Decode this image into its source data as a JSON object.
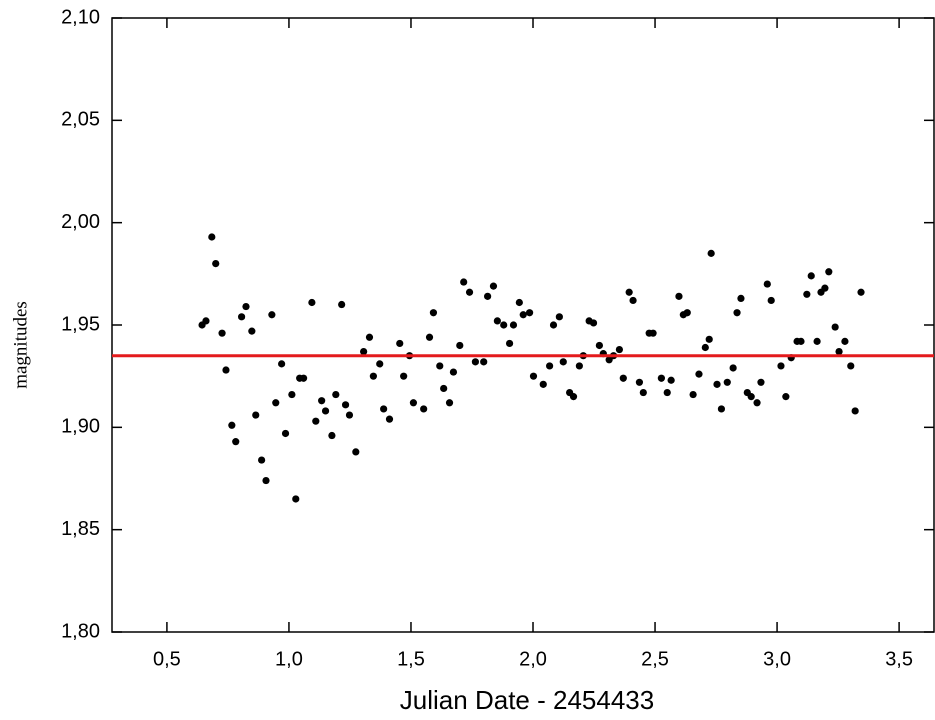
{
  "chart_data": {
    "type": "scatter",
    "x_label": "Julian Date - 2454433",
    "y_label": "magnitudes",
    "color": "#000000",
    "hline": 1.935,
    "hline_color": "#e41a1c",
    "xlim": [
      0.275,
      3.643
    ],
    "ylim": [
      1.8,
      2.1
    ],
    "xticks": [
      {
        "value": 0.5,
        "label": "0,5"
      },
      {
        "value": 1.0,
        "label": "1,0"
      },
      {
        "value": 1.5,
        "label": "1,5"
      },
      {
        "value": 2.0,
        "label": "2,0"
      },
      {
        "value": 2.5,
        "label": "2,5"
      },
      {
        "value": 3.0,
        "label": "3,0"
      },
      {
        "value": 3.5,
        "label": "3,5"
      }
    ],
    "yticks": [
      {
        "value": 1.8,
        "label": "1,80"
      },
      {
        "value": 1.85,
        "label": "1,85"
      },
      {
        "value": 1.9,
        "label": "1,90"
      },
      {
        "value": 1.95,
        "label": "1,95"
      },
      {
        "value": 2.0,
        "label": "2,00"
      },
      {
        "value": 2.05,
        "label": "2,05"
      },
      {
        "value": 2.1,
        "label": "2,10"
      }
    ],
    "x": [
      0.644,
      0.66,
      0.684,
      0.7,
      0.726,
      0.742,
      0.766,
      0.782,
      0.806,
      0.824,
      0.848,
      0.864,
      0.888,
      0.906,
      0.93,
      0.946,
      0.97,
      0.986,
      1.012,
      1.028,
      1.044,
      1.06,
      1.094,
      1.11,
      1.134,
      1.15,
      1.176,
      1.192,
      1.216,
      1.232,
      1.248,
      1.274,
      1.306,
      1.33,
      1.346,
      1.372,
      1.388,
      1.412,
      1.454,
      1.47,
      1.494,
      1.51,
      1.552,
      1.576,
      1.592,
      1.618,
      1.634,
      1.658,
      1.674,
      1.7,
      1.716,
      1.74,
      1.764,
      1.798,
      1.814,
      1.838,
      1.854,
      1.88,
      1.904,
      1.92,
      1.944,
      1.96,
      1.986,
      2.002,
      2.042,
      2.068,
      2.084,
      2.108,
      2.124,
      2.15,
      2.166,
      2.19,
      2.206,
      2.23,
      2.248,
      2.272,
      2.288,
      2.312,
      2.33,
      2.354,
      2.37,
      2.394,
      2.41,
      2.436,
      2.452,
      2.476,
      2.492,
      2.526,
      2.55,
      2.566,
      2.598,
      2.616,
      2.632,
      2.656,
      2.68,
      2.706,
      2.722,
      2.73,
      2.754,
      2.772,
      2.796,
      2.82,
      2.836,
      2.852,
      2.878,
      2.894,
      2.918,
      2.934,
      2.96,
      2.976,
      3.016,
      3.036,
      3.058,
      3.082,
      3.098,
      3.122,
      3.14,
      3.164,
      3.18,
      3.196,
      3.212,
      3.238,
      3.254,
      3.278,
      3.302,
      3.32,
      3.344
    ],
    "values": [
      1.95,
      1.952,
      1.993,
      1.98,
      1.946,
      1.928,
      1.901,
      1.893,
      1.954,
      1.959,
      1.947,
      1.906,
      1.884,
      1.874,
      1.955,
      1.912,
      1.931,
      1.897,
      1.916,
      1.865,
      1.924,
      1.924,
      1.961,
      1.903,
      1.913,
      1.908,
      1.896,
      1.916,
      1.96,
      1.911,
      1.906,
      1.888,
      1.937,
      1.944,
      1.925,
      1.931,
      1.909,
      1.904,
      1.941,
      1.925,
      1.935,
      1.912,
      1.909,
      1.944,
      1.956,
      1.93,
      1.919,
      1.912,
      1.927,
      1.94,
      1.971,
      1.966,
      1.932,
      1.932,
      1.964,
      1.969,
      1.952,
      1.95,
      1.941,
      1.95,
      1.961,
      1.955,
      1.956,
      1.925,
      1.921,
      1.93,
      1.95,
      1.954,
      1.932,
      1.917,
      1.915,
      1.93,
      1.935,
      1.952,
      1.951,
      1.94,
      1.936,
      1.933,
      1.935,
      1.938,
      1.924,
      1.966,
      1.962,
      1.922,
      1.917,
      1.946,
      1.946,
      1.924,
      1.917,
      1.923,
      1.964,
      1.955,
      1.956,
      1.916,
      1.926,
      1.939,
      1.943,
      1.985,
      1.921,
      1.909,
      1.922,
      1.929,
      1.956,
      1.963,
      1.917,
      1.915,
      1.912,
      1.922,
      1.97,
      1.962,
      1.93,
      1.915,
      1.934,
      1.942,
      1.942,
      1.965,
      1.974,
      1.942,
      1.966,
      1.968,
      1.976,
      1.949,
      1.937,
      1.942,
      1.93,
      1.908,
      1.966
    ]
  }
}
